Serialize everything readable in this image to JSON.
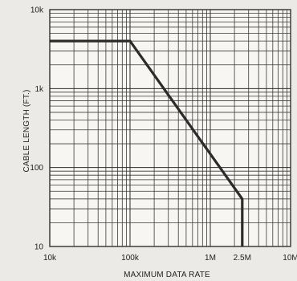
{
  "chart_data": {
    "type": "line",
    "title": "",
    "xlabel": "MAXIMUM DATA RATE",
    "ylabel": "CABLE LENGTH (FT.)",
    "xscale": "log",
    "yscale": "log",
    "xlim": [
      10000,
      10000000
    ],
    "ylim": [
      10,
      10000
    ],
    "grid": true,
    "x_ticks": [
      {
        "value": 10000,
        "label": "10k"
      },
      {
        "value": 100000,
        "label": "100k"
      },
      {
        "value": 1000000,
        "label": "1M"
      },
      {
        "value": 2500000,
        "label": "2.5M"
      },
      {
        "value": 10000000,
        "label": "10M"
      }
    ],
    "y_ticks": [
      {
        "value": 10,
        "label": "10"
      },
      {
        "value": 100,
        "label": "100"
      },
      {
        "value": 1000,
        "label": "1k"
      },
      {
        "value": 10000,
        "label": "10k"
      }
    ],
    "series": [
      {
        "x": [
          10000,
          100000,
          2500000,
          2500000
        ],
        "y": [
          4000,
          4000,
          40,
          10
        ]
      }
    ],
    "line_color": "#2b2b2b"
  }
}
